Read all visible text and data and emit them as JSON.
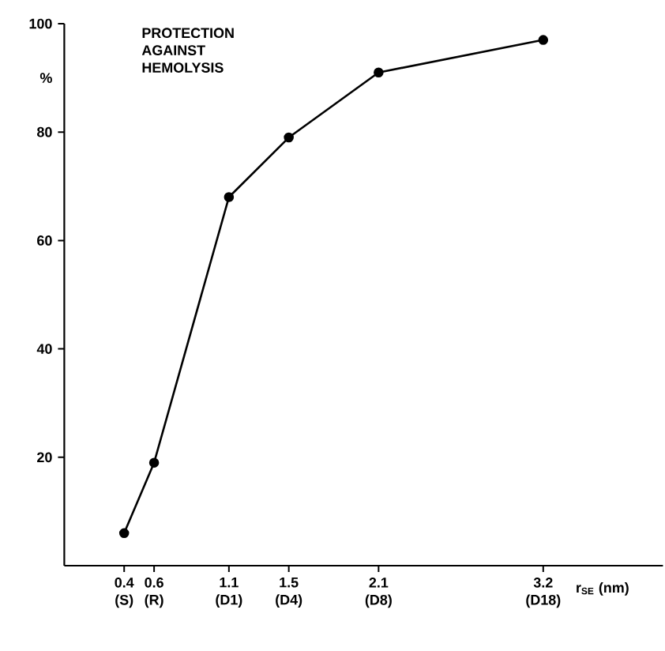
{
  "chart_data": {
    "type": "line",
    "title": "PROTECTION AGAINST HEMOLYSIS",
    "xlabel": "r$_{SE}$ (nm)",
    "ylabel": "%",
    "x": [
      0.4,
      0.6,
      1.1,
      1.5,
      2.1,
      3.2
    ],
    "values": [
      6,
      19,
      68,
      79,
      91,
      97
    ],
    "color": "#000000",
    "xlim": [
      0,
      4
    ],
    "ylim": [
      0,
      100
    ],
    "xticks": [
      {
        "value": 0.4,
        "label": "0.4 (S)"
      },
      {
        "value": 0.6,
        "label": "0.6 (R)"
      },
      {
        "value": 1.1,
        "label": "1.1 (D1)"
      },
      {
        "value": 1.5,
        "label": "1.5 (D4)"
      },
      {
        "value": 2.1,
        "label": "2.1 (D8)"
      },
      {
        "value": 3.2,
        "label": "3.2 (D18)"
      }
    ],
    "yticks": [
      20,
      40,
      60,
      80,
      100
    ],
    "marker": "circle",
    "line_style": "solid"
  }
}
